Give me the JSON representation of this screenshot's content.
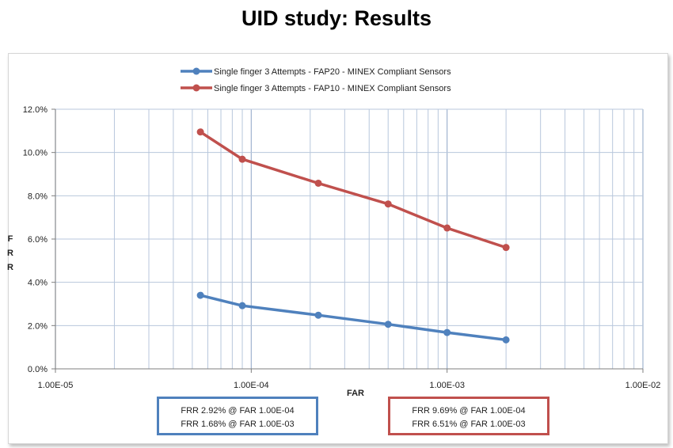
{
  "slide": {
    "title": "UID study: Results"
  },
  "chart_data": {
    "type": "line",
    "x_scale": "log",
    "xlabel": "FAR",
    "ylabel": "FRR",
    "xlim": [
      1e-05,
      0.01
    ],
    "ylim": [
      0,
      0.12
    ],
    "x_ticks": [
      "1.00E-05",
      "1.00E-04",
      "1.00E-03",
      "1.00E-02"
    ],
    "y_ticks": [
      "0.0%",
      "2.0%",
      "4.0%",
      "6.0%",
      "8.0%",
      "10.0%",
      "12.0%"
    ],
    "grid": true,
    "legend_position": "top",
    "series": [
      {
        "name": "Single finger 3 Attempts - FAP20 - MINEX Compliant Sensors",
        "color": "#4f81bd",
        "x": [
          5.5e-05,
          9e-05,
          0.00022,
          0.0005,
          0.001,
          0.002
        ],
        "y": [
          0.034,
          0.0292,
          0.0248,
          0.0206,
          0.0168,
          0.0134
        ]
      },
      {
        "name": "Single finger 3 Attempts - FAP10 - MINEX Compliant Sensors",
        "color": "#c0504d",
        "x": [
          5.5e-05,
          9e-05,
          0.00022,
          0.0005,
          0.001,
          0.002
        ],
        "y": [
          0.1095,
          0.0969,
          0.0858,
          0.0762,
          0.0651,
          0.0561
        ]
      }
    ]
  },
  "callouts": {
    "blue": {
      "line1": "FRR 2.92% @ FAR 1.00E-04",
      "line2": "FRR 1.68% @ FAR 1.00E-03",
      "color": "#4f81bd"
    },
    "red": {
      "line1": "FRR 9.69% @ FAR 1.00E-04",
      "line2": "FRR 6.51% @ FAR 1.00E-03",
      "color": "#c0504d"
    }
  }
}
